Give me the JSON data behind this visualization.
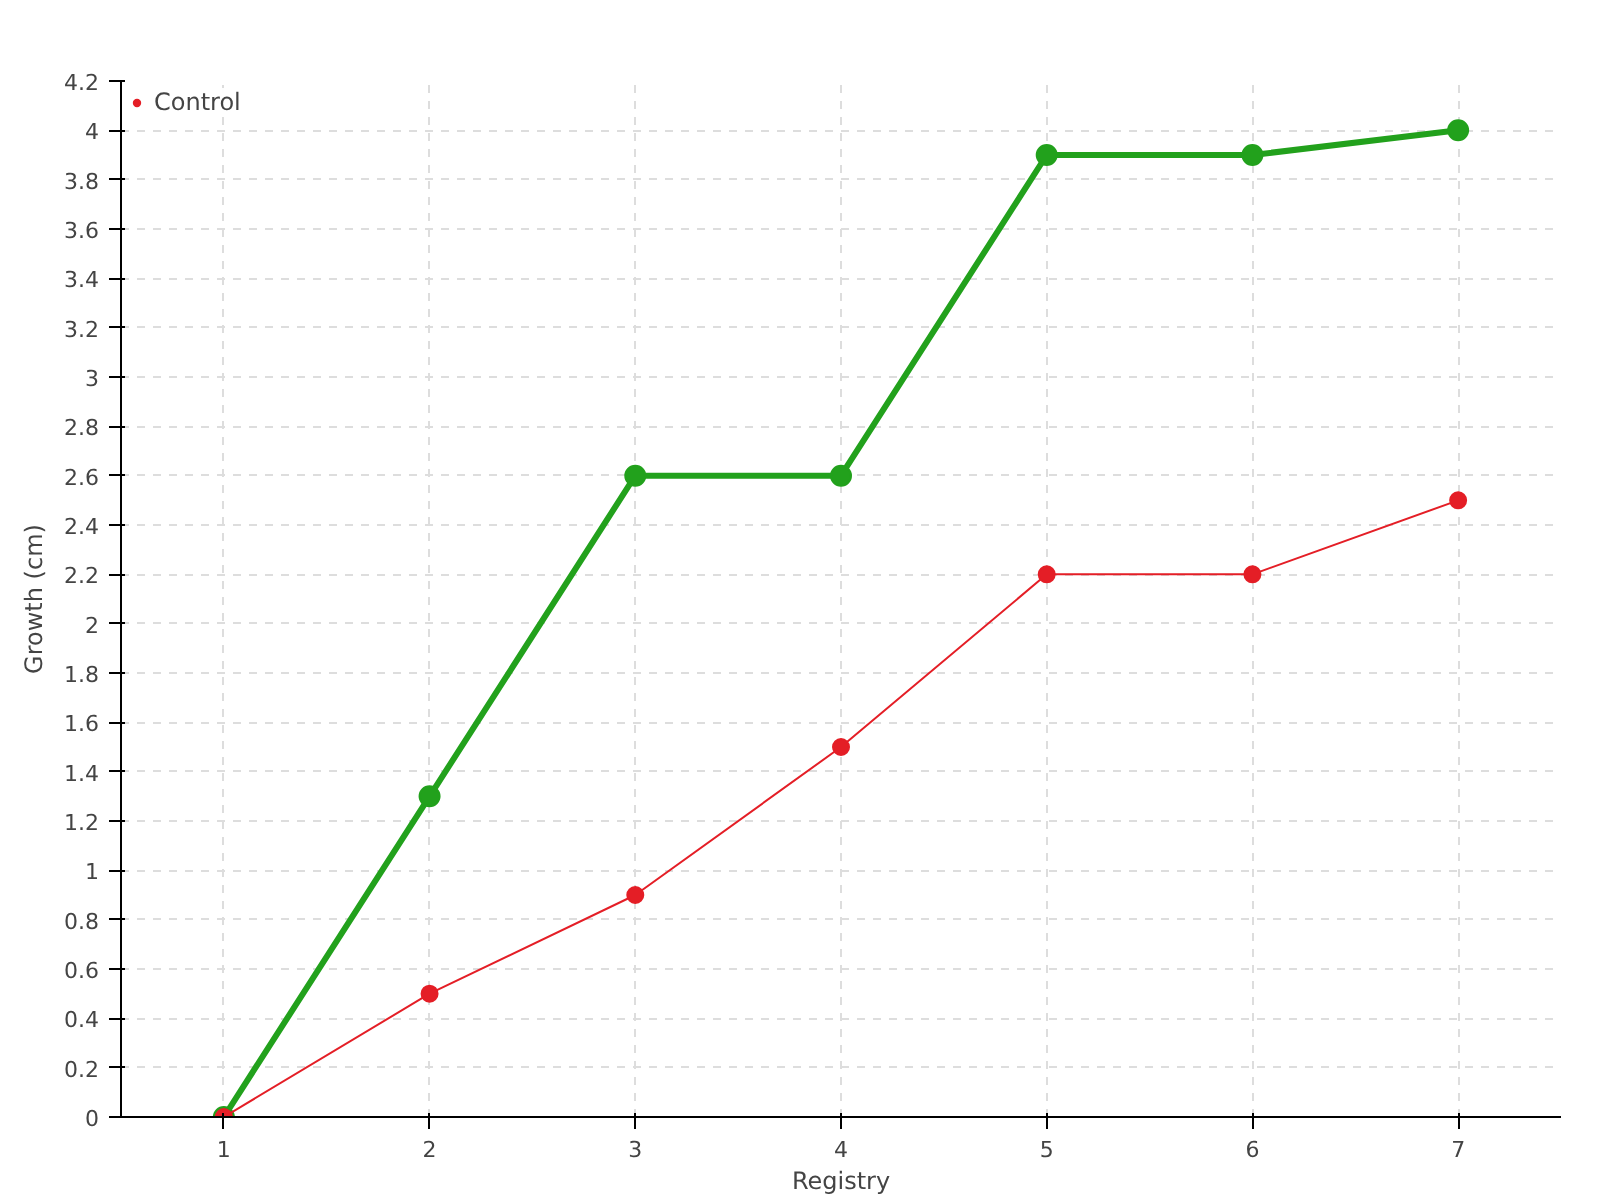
{
  "chart_data": {
    "type": "line",
    "xlabel": "Registry",
    "ylabel": "Growth (cm)",
    "x": [
      1,
      2,
      3,
      4,
      5,
      6,
      7
    ],
    "series": [
      {
        "color": "#22a11c",
        "values": [
          0,
          1.3,
          2.6,
          2.6,
          3.9,
          3.9,
          4.0
        ]
      },
      {
        "name": "Control",
        "color": "#e41e26",
        "values": [
          0,
          0.5,
          0.9,
          1.5,
          2.2,
          2.2,
          2.5
        ]
      }
    ],
    "xlim": [
      0.5,
      7.5
    ],
    "xticks": [
      1,
      2,
      3,
      4,
      5,
      6,
      7
    ],
    "ylim": [
      0,
      4.2
    ],
    "yticks": [
      0,
      0.2,
      0.4,
      0.6,
      0.8,
      1,
      1.2,
      1.4,
      1.6,
      1.8,
      2,
      2.2,
      2.4,
      2.6,
      2.8,
      3,
      3.2,
      3.4,
      3.6,
      3.8,
      4,
      4.2
    ],
    "grid": true,
    "legend": "top left",
    "marker": "circle",
    "line_style": "solid"
  }
}
